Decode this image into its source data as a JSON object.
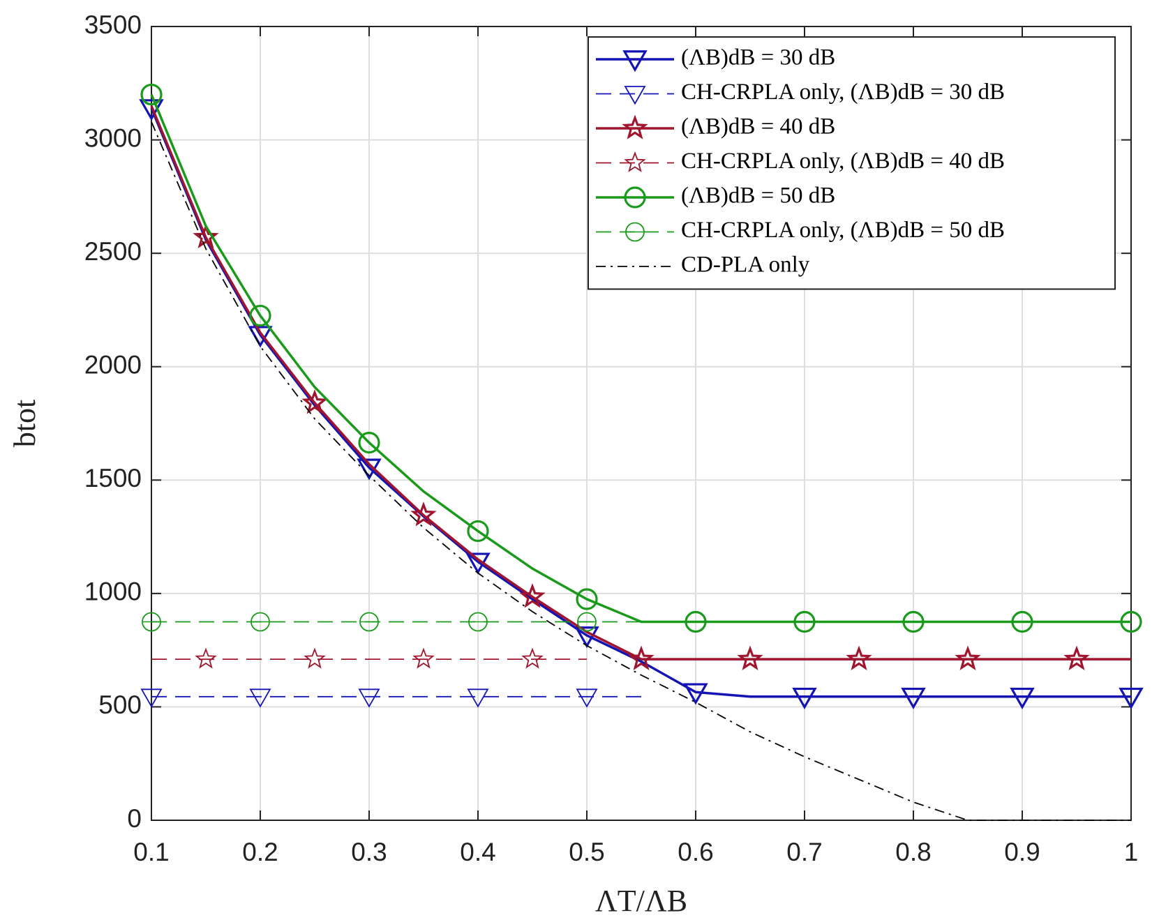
{
  "chart_data": {
    "type": "line",
    "xlabel": "ΛT/ΛB",
    "ylabel": "btot",
    "xlim": [
      0.1,
      1
    ],
    "ylim": [
      0,
      3500
    ],
    "xticks": [
      0.1,
      0.2,
      0.3,
      0.4,
      0.5,
      0.6,
      0.7,
      0.8,
      0.9,
      1
    ],
    "yticks": [
      0,
      500,
      1000,
      1500,
      2000,
      2500,
      3000,
      3500
    ],
    "grid": true,
    "legend": "upper right",
    "series": [
      {
        "name": "(ΛB)dB = 30 dB",
        "color": "#1414b4",
        "style": "solid",
        "marker": "triangle-down",
        "markevery": [
          0,
          2
        ],
        "x": [
          0.1,
          0.15,
          0.2,
          0.25,
          0.3,
          0.35,
          0.4,
          0.45,
          0.5,
          0.55,
          0.6,
          0.65,
          0.7,
          0.75,
          0.8,
          0.85,
          0.9,
          0.95,
          1
        ],
        "values": [
          3140,
          2560,
          2140,
          1830,
          1555,
          1340,
          1140,
          975,
          815,
          700,
          565,
          545,
          545,
          545,
          545,
          545,
          545,
          545,
          545
        ]
      },
      {
        "name": "CH-CRPLA only, (ΛB)dB = 30 dB",
        "color": "#1414b4",
        "style": "dashed",
        "marker": "triangle-down",
        "markevery": [
          0,
          2
        ],
        "x": [
          0.1,
          0.15,
          0.2,
          0.25,
          0.3,
          0.35,
          0.4,
          0.45,
          0.5,
          0.55
        ],
        "values": [
          545,
          545,
          545,
          545,
          545,
          545,
          545,
          545,
          545,
          545
        ]
      },
      {
        "name": "(ΛB)dB = 40 dB",
        "color": "#a0142e",
        "style": "solid",
        "marker": "star",
        "markevery": [
          1,
          2
        ],
        "x": [
          0.1,
          0.15,
          0.2,
          0.25,
          0.3,
          0.35,
          0.4,
          0.45,
          0.5,
          0.55,
          0.6,
          0.65,
          0.7,
          0.75,
          0.8,
          0.85,
          0.9,
          0.95,
          1
        ],
        "values": [
          3150,
          2570,
          2150,
          1840,
          1570,
          1345,
          1150,
          985,
          830,
          710,
          710,
          710,
          710,
          710,
          710,
          710,
          710,
          710,
          710
        ]
      },
      {
        "name": "CH-CRPLA only, (ΛB)dB = 40 dB",
        "color": "#a0142e",
        "style": "dashed",
        "marker": "star",
        "markevery": [
          1,
          2
        ],
        "x": [
          0.1,
          0.15,
          0.2,
          0.25,
          0.3,
          0.35,
          0.4,
          0.45,
          0.5
        ],
        "values": [
          710,
          710,
          710,
          710,
          710,
          710,
          710,
          710,
          710
        ]
      },
      {
        "name": "(ΛB)dB = 50 dB",
        "color": "#1a9a1a",
        "style": "solid",
        "marker": "circle",
        "markevery": [
          0,
          2
        ],
        "x": [
          0.1,
          0.15,
          0.2,
          0.25,
          0.3,
          0.35,
          0.4,
          0.45,
          0.5,
          0.55,
          0.6,
          0.65,
          0.7,
          0.75,
          0.8,
          0.85,
          0.9,
          0.95,
          1
        ],
        "values": [
          3200,
          2620,
          2225,
          1910,
          1665,
          1450,
          1275,
          1110,
          975,
          875,
          875,
          875,
          875,
          875,
          875,
          875,
          875,
          875,
          875
        ]
      },
      {
        "name": "CH-CRPLA only, (ΛB)dB = 50 dB",
        "color": "#1a9a1a",
        "style": "dashed",
        "marker": "circle",
        "markevery": [
          0,
          2
        ],
        "x": [
          0.1,
          0.15,
          0.2,
          0.25,
          0.3,
          0.35,
          0.4,
          0.45,
          0.5,
          0.55
        ],
        "values": [
          875,
          875,
          875,
          875,
          875,
          875,
          875,
          875,
          875,
          875
        ]
      },
      {
        "name": "CD-PLA only",
        "color": "#000000",
        "style": "dashdot",
        "marker": "none",
        "markevery": [
          0,
          1
        ],
        "x": [
          0.1,
          0.15,
          0.2,
          0.25,
          0.3,
          0.35,
          0.4,
          0.45,
          0.5,
          0.55,
          0.6,
          0.65,
          0.7,
          0.75,
          0.8,
          0.85,
          0.9,
          0.95,
          1
        ],
        "values": [
          3080,
          2520,
          2090,
          1770,
          1520,
          1290,
          1090,
          920,
          770,
          640,
          520,
          390,
          280,
          180,
          80,
          0,
          0,
          0,
          0
        ]
      }
    ]
  }
}
